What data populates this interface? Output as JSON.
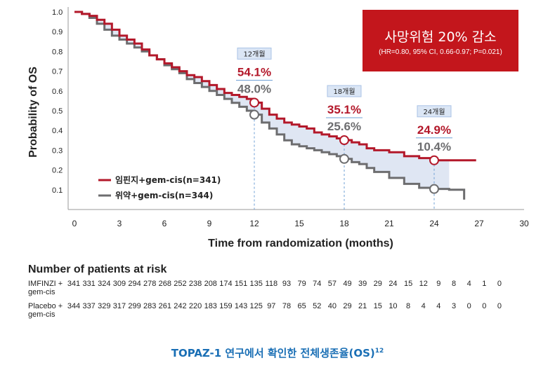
{
  "chart_data": {
    "type": "line",
    "xlabel": "Time from randomization (months)",
    "ylabel": "Probability of OS",
    "xlim": [
      0,
      30
    ],
    "ylim": [
      0,
      1.0
    ],
    "xticks": [
      0,
      3,
      6,
      9,
      12,
      15,
      18,
      21,
      24,
      27,
      30
    ],
    "yticks": [
      0.1,
      0.2,
      0.3,
      0.4,
      0.5,
      0.6,
      0.7,
      0.8,
      0.9,
      1.0
    ],
    "series": [
      {
        "name": "임핀지+gem-cis(n=341)",
        "color": "#b3182a",
        "x": [
          0,
          0.5,
          1,
          1.5,
          2,
          2.5,
          3,
          3.5,
          4,
          4.5,
          5,
          5.5,
          6,
          6.5,
          7,
          7.5,
          8,
          8.5,
          9,
          9.5,
          10,
          10.5,
          11,
          11.5,
          12,
          12.5,
          13,
          13.5,
          14,
          14.5,
          15,
          15.5,
          16,
          16.5,
          17,
          17.5,
          18,
          18.5,
          19,
          19.5,
          20,
          21,
          22,
          23,
          24,
          25,
          26.8
        ],
        "y": [
          1.0,
          0.99,
          0.98,
          0.96,
          0.94,
          0.91,
          0.88,
          0.86,
          0.84,
          0.81,
          0.78,
          0.76,
          0.74,
          0.72,
          0.7,
          0.68,
          0.67,
          0.65,
          0.63,
          0.61,
          0.59,
          0.58,
          0.57,
          0.56,
          0.541,
          0.51,
          0.48,
          0.46,
          0.44,
          0.43,
          0.42,
          0.41,
          0.39,
          0.38,
          0.37,
          0.36,
          0.351,
          0.34,
          0.33,
          0.31,
          0.3,
          0.29,
          0.27,
          0.26,
          0.249,
          0.249,
          0.249
        ]
      },
      {
        "name": "위약+gem-cis(n=344)",
        "color": "#6d6d6f",
        "x": [
          0,
          0.5,
          1,
          1.5,
          2,
          2.5,
          3,
          3.5,
          4,
          4.5,
          5,
          5.5,
          6,
          6.5,
          7,
          7.5,
          8,
          8.5,
          9,
          9.5,
          10,
          10.5,
          11,
          11.5,
          12,
          12.5,
          13,
          13.5,
          14,
          14.5,
          15,
          15.5,
          16,
          16.5,
          17,
          17.5,
          18,
          18.5,
          19,
          19.5,
          20,
          21,
          22,
          23,
          24,
          25,
          25.8,
          26
        ],
        "y": [
          1.0,
          0.99,
          0.97,
          0.94,
          0.91,
          0.88,
          0.86,
          0.84,
          0.82,
          0.8,
          0.78,
          0.76,
          0.73,
          0.71,
          0.69,
          0.66,
          0.64,
          0.62,
          0.6,
          0.58,
          0.56,
          0.54,
          0.52,
          0.5,
          0.48,
          0.44,
          0.41,
          0.38,
          0.35,
          0.33,
          0.32,
          0.31,
          0.3,
          0.29,
          0.28,
          0.27,
          0.256,
          0.24,
          0.23,
          0.21,
          0.19,
          0.16,
          0.13,
          0.11,
          0.104,
          0.1,
          0.1,
          0.05
        ]
      }
    ],
    "annotations": [
      {
        "time_label": "12개월",
        "x": 12,
        "value1": "54.1%",
        "value2": "48.0%",
        "y1": 0.541,
        "y2": 0.48
      },
      {
        "time_label": "18개월",
        "x": 18,
        "value1": "35.1%",
        "value2": "25.6%",
        "y1": 0.351,
        "y2": 0.256
      },
      {
        "time_label": "24개월",
        "x": 24,
        "value1": "24.9%",
        "value2": "10.4%",
        "y1": 0.249,
        "y2": 0.104
      }
    ],
    "legend_position": "bottom-left",
    "colors": {
      "imfinzi": "#b3182a",
      "placebo": "#6d6d6f",
      "fill": "#dfe6f3",
      "guide": "#6fa0d6",
      "box": "#c3161c",
      "caption": "#1a6fb5"
    }
  },
  "hr_box": {
    "main": "사망위험 20% 감소",
    "sub": "(HR=0.80, 95% CI, 0.66-0.97; P=0.021)"
  },
  "risk_table": {
    "title": "Number of patients at risk",
    "rows": [
      {
        "label": "IMFINZI + gem-cis",
        "values": [
          "341",
          "331",
          "324",
          "309",
          "294",
          "278",
          "268",
          "252",
          "238",
          "208",
          "174",
          "151",
          "135",
          "118",
          "93",
          "79",
          "74",
          "57",
          "49",
          "39",
          "29",
          "24",
          "15",
          "12",
          "9",
          "8",
          "4",
          "1",
          "0"
        ]
      },
      {
        "label": "Placebo + gem-cis",
        "values": [
          "344",
          "337",
          "329",
          "317",
          "299",
          "283",
          "261",
          "242",
          "220",
          "183",
          "159",
          "143",
          "125",
          "97",
          "78",
          "65",
          "52",
          "40",
          "29",
          "21",
          "15",
          "10",
          "8",
          "4",
          "4",
          "3",
          "0",
          "0",
          "0"
        ]
      }
    ]
  },
  "caption": {
    "text": "TOPAZ-1 연구에서 확인한 전체생존율(OS)",
    "sup": "12"
  }
}
